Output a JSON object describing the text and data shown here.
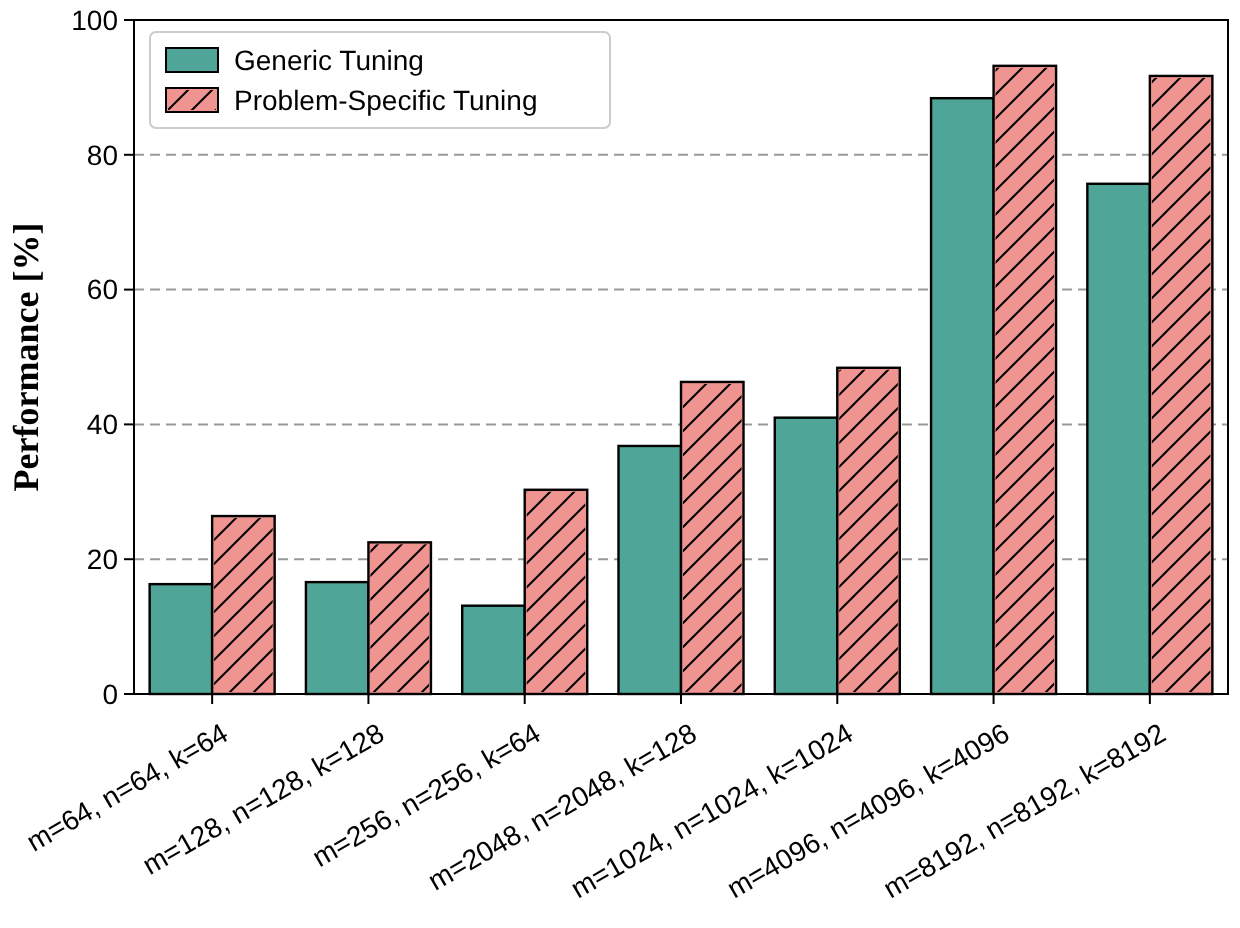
{
  "chart_data": {
    "type": "bar",
    "ylabel": "Performance [%]",
    "categories": [
      "m=64, n=64, k=64",
      "m=128, n=128, k=128",
      "m=256, n=256, k=64",
      "m=2048, n=2048, k=128",
      "m=1024, n=1024, k=1024",
      "m=4096, n=4096, k=4096",
      "m=8192, n=8192, k=8192"
    ],
    "series": [
      {
        "name": "Generic Tuning",
        "color": "#4fa597",
        "values": [
          16.3,
          16.6,
          13.1,
          36.8,
          41.0,
          88.4,
          75.7
        ]
      },
      {
        "name": "Problem-Specific Tuning",
        "color": "#ef9490",
        "values": [
          26.4,
          22.5,
          30.3,
          46.3,
          48.4,
          93.2,
          91.7
        ]
      }
    ],
    "ylim": [
      0,
      100
    ],
    "yticks": [
      0,
      20,
      40,
      60,
      80,
      100
    ],
    "grid": "y",
    "legend": "top left"
  }
}
